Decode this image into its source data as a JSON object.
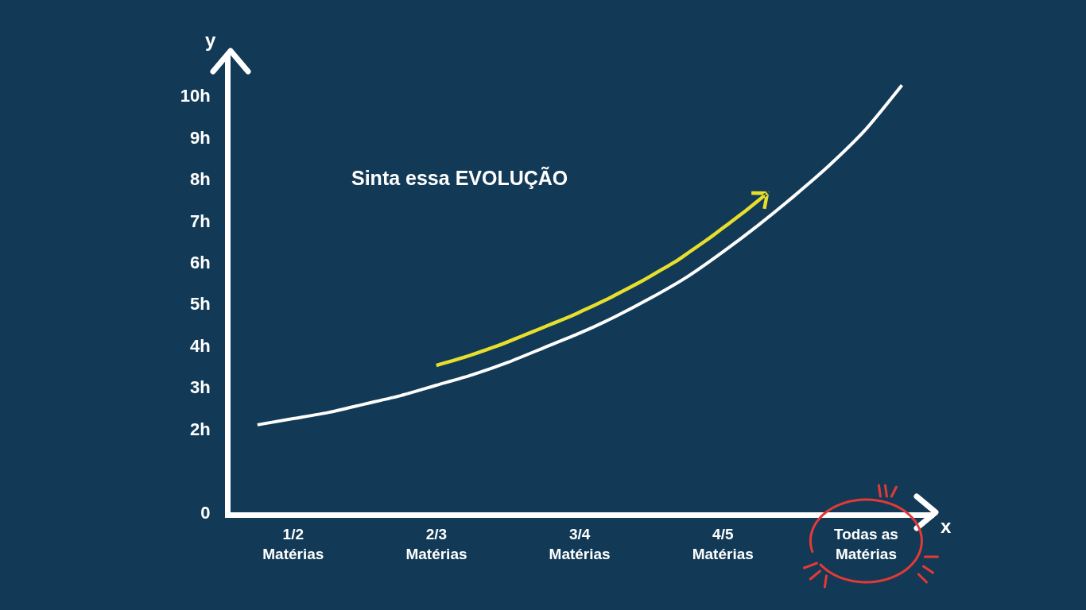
{
  "chart_data": {
    "type": "line",
    "title": "Sinta essa EVOLUÇÃO",
    "xlabel": "x",
    "ylabel": "y",
    "categories": [
      null,
      "1/2\nMatérias",
      null,
      null,
      null,
      "2/3\nMatérias",
      null,
      null,
      null,
      "3/4\nMatérias",
      null,
      null,
      null,
      "4/5\nMatérias",
      null,
      null,
      null,
      "Todas as\nMatérias",
      null
    ],
    "ylim": [
      0,
      11
    ],
    "yticks": [
      0,
      {
        "value": 2,
        "label": "2h"
      },
      {
        "value": 3,
        "label": "3h"
      },
      {
        "value": 4,
        "label": "4h"
      },
      {
        "value": 5,
        "label": "5h"
      },
      {
        "value": 6,
        "label": "6h"
      },
      {
        "value": 7,
        "label": "7h"
      },
      {
        "value": 8,
        "label": "8h"
      },
      {
        "value": 9,
        "label": "9h"
      },
      {
        "value": 10,
        "label": "10h"
      }
    ],
    "series": [
      {
        "color": "#ffffff",
        "values": [
          2.1,
          2.25,
          2.4,
          2.6,
          2.8,
          3.05,
          3.3,
          3.6,
          3.95,
          4.3,
          4.7,
          5.15,
          5.65,
          6.25,
          6.9,
          7.6,
          8.35,
          9.2,
          10.25
        ]
      }
    ],
    "line_style": "solid"
  }
}
